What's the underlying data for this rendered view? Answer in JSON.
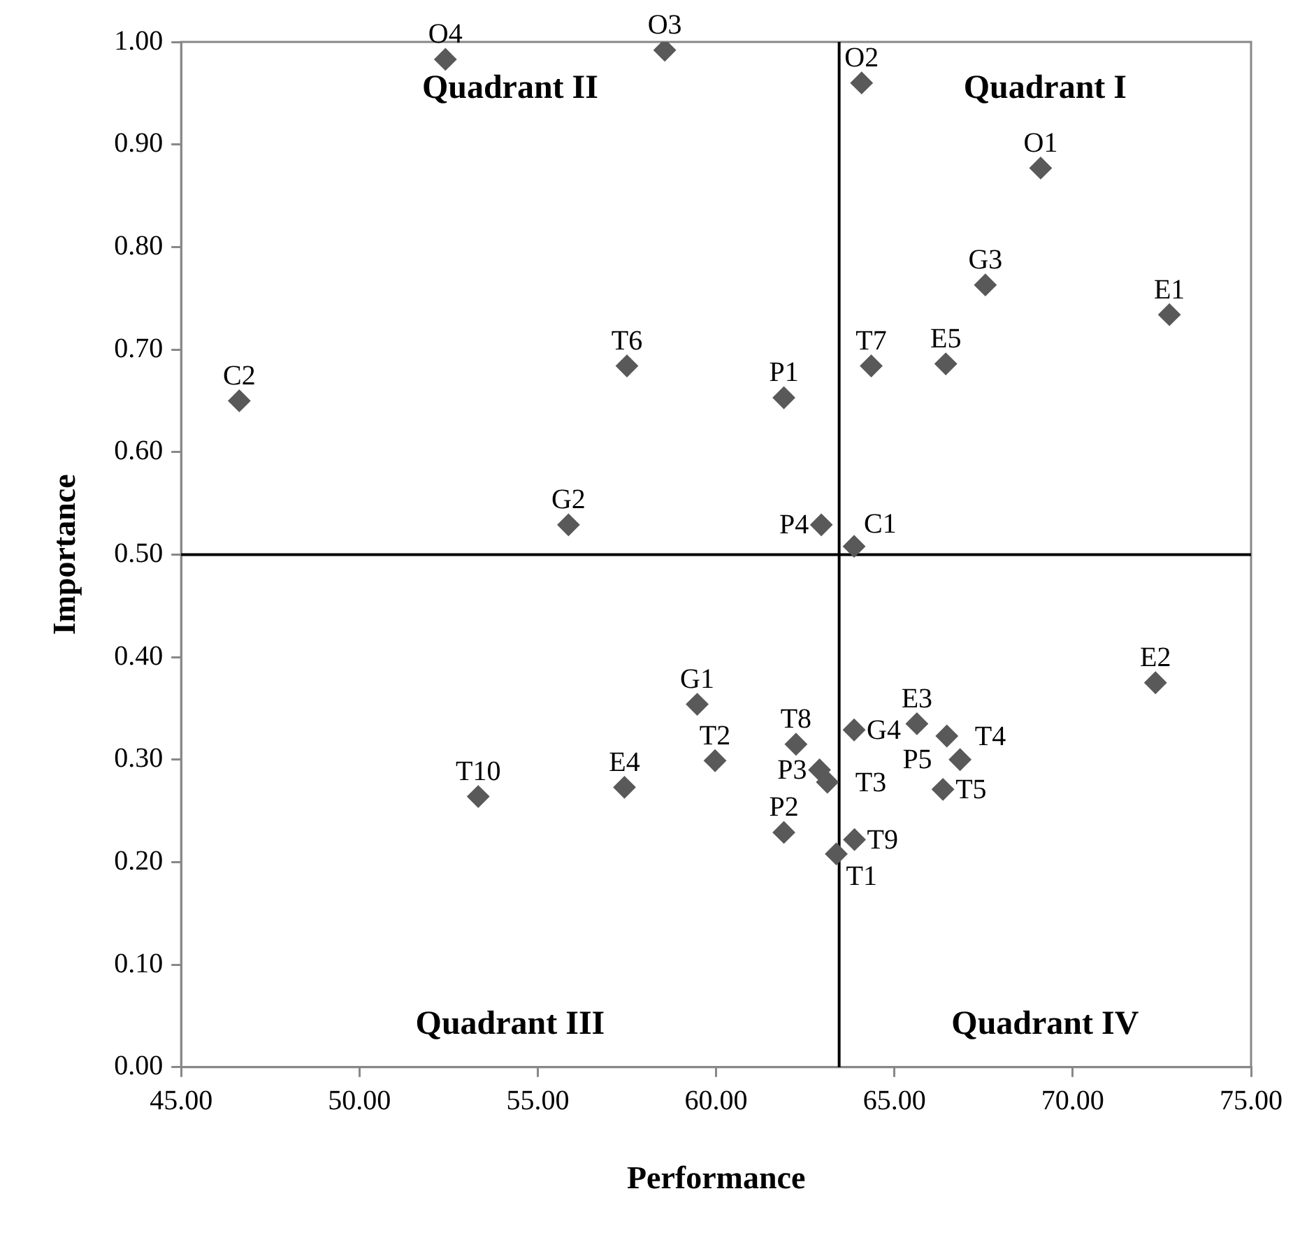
{
  "chart_data": {
    "type": "scatter",
    "xlabel": "Performance",
    "ylabel": "Importance",
    "series": [
      {
        "color": "#595959",
        "x": [
          52.41,
          58.56,
          64.08,
          69.1,
          67.55,
          72.71,
          64.35,
          66.44,
          61.9,
          57.5,
          46.63,
          55.86,
          62.95,
          63.87,
          59.47,
          59.97,
          53.33,
          57.43,
          62.24,
          62.9,
          63.12,
          61.9,
          63.37,
          63.88,
          63.87,
          65.63,
          66.47,
          66.84,
          66.36,
          72.32
        ],
        "values": [
          0.983,
          0.992,
          0.96,
          0.877,
          0.763,
          0.734,
          0.684,
          0.686,
          0.653,
          0.684,
          0.65,
          0.529,
          0.529,
          0.508,
          0.354,
          0.299,
          0.264,
          0.273,
          0.315,
          0.29,
          0.278,
          0.229,
          0.208,
          0.222,
          0.329,
          0.335,
          0.323,
          0.3,
          0.271,
          0.375
        ]
      }
    ],
    "marker": "diamond",
    "grid": false,
    "legend": false,
    "xlim": [
      45,
      75
    ],
    "xticks": [
      {
        "value": 45,
        "label": "45.00"
      },
      {
        "value": 50,
        "label": "50.00"
      },
      {
        "value": 55,
        "label": "55.00"
      },
      {
        "value": 60,
        "label": "60.00"
      },
      {
        "value": 65,
        "label": "65.00"
      },
      {
        "value": 70,
        "label": "70.00"
      },
      {
        "value": 75,
        "label": "75.00"
      }
    ],
    "ylim": [
      0,
      1
    ],
    "yticks": [
      {
        "value": 0,
        "label": "0.00"
      },
      {
        "value": 0.1,
        "label": "0.10"
      },
      {
        "value": 0.2,
        "label": "0.20"
      },
      {
        "value": 0.3,
        "label": "0.30"
      },
      {
        "value": 0.4,
        "label": "0.40"
      },
      {
        "value": 0.5,
        "label": "0.50"
      },
      {
        "value": 0.6,
        "label": "0.60"
      },
      {
        "value": 0.7,
        "label": "0.70"
      },
      {
        "value": 0.8,
        "label": "0.80"
      },
      {
        "value": 0.9,
        "label": "0.90"
      },
      {
        "value": 1,
        "label": "1.00"
      }
    ],
    "ref_lines": [
      {
        "axis": "x",
        "value": 63.45,
        "color": "#000000"
      },
      {
        "axis": "y",
        "value": 0.5,
        "color": "#000000"
      }
    ],
    "annotations": [
      "Quadrant I",
      "Quadrant II",
      "Quadrant III",
      "Quadrant IV",
      {
        "text": "O4",
        "x": 52.41,
        "y": 0.983
      },
      {
        "text": "O3",
        "x": 58.56,
        "y": 0.992
      },
      {
        "text": "O2",
        "x": 64.08,
        "y": 0.96
      },
      {
        "text": "O1",
        "x": 69.1,
        "y": 0.877
      },
      {
        "text": "G3",
        "x": 67.55,
        "y": 0.763
      },
      {
        "text": "E1",
        "x": 72.71,
        "y": 0.734
      },
      {
        "text": "T7",
        "x": 64.35,
        "y": 0.684
      },
      {
        "text": "E5",
        "x": 66.44,
        "y": 0.686
      },
      {
        "text": "P1",
        "x": 61.9,
        "y": 0.653
      },
      {
        "text": "T6",
        "x": 57.5,
        "y": 0.684
      },
      {
        "text": "C2",
        "x": 46.63,
        "y": 0.65
      },
      {
        "text": "G2",
        "x": 55.86,
        "y": 0.529
      },
      {
        "text": "P4",
        "x": 62.95,
        "y": 0.529
      },
      {
        "text": "C1",
        "x": 63.87,
        "y": 0.508
      },
      {
        "text": "G1",
        "x": 59.47,
        "y": 0.354
      },
      {
        "text": "T2",
        "x": 59.97,
        "y": 0.299
      },
      {
        "text": "T10",
        "x": 53.33,
        "y": 0.264
      },
      {
        "text": "E4",
        "x": 57.43,
        "y": 0.273
      },
      {
        "text": "T8",
        "x": 62.24,
        "y": 0.315
      },
      {
        "text": "P3",
        "x": 62.9,
        "y": 0.29
      },
      {
        "text": "T3",
        "x": 63.12,
        "y": 0.278
      },
      {
        "text": "P2",
        "x": 61.9,
        "y": 0.229
      },
      {
        "text": "T1",
        "x": 63.37,
        "y": 0.208
      },
      {
        "text": "T9",
        "x": 63.88,
        "y": 0.222
      },
      {
        "text": "G4",
        "x": 63.87,
        "y": 0.329
      },
      {
        "text": "E3",
        "x": 65.63,
        "y": 0.335
      },
      {
        "text": "T4",
        "x": 66.47,
        "y": 0.323
      },
      {
        "text": "P5",
        "x": 66.84,
        "y": 0.3
      },
      {
        "text": "T5",
        "x": 66.36,
        "y": 0.271
      },
      {
        "text": "E2",
        "x": 72.32,
        "y": 0.375
      }
    ]
  }
}
